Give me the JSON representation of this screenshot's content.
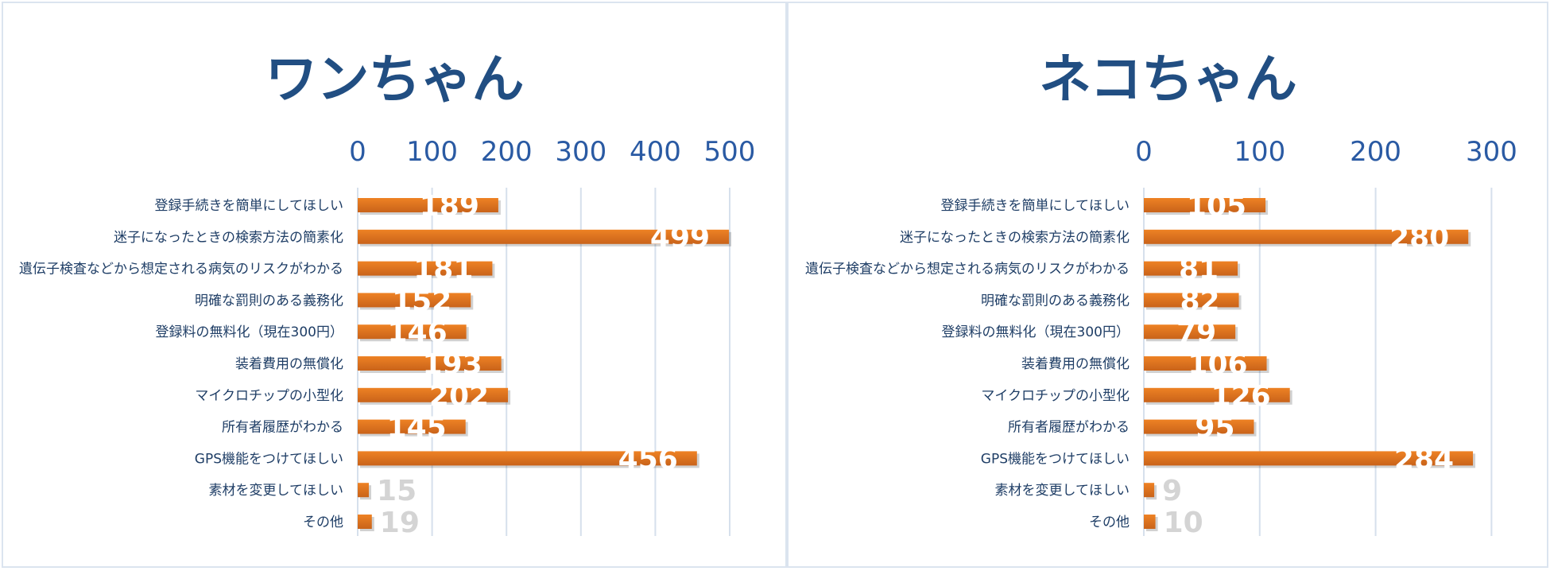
{
  "colors": {
    "bar": "#ee8224",
    "bar_dark": "#c9631a",
    "title": "#214e82",
    "tick": "#2a5aa3",
    "category_text": "#1f3e66",
    "grid": "#d6e0ec",
    "label_light": "#ffffff",
    "label_muted": "#d4d4d4"
  },
  "chart_data": [
    {
      "type": "bar",
      "orientation": "horizontal",
      "title": "ワンちゃん",
      "categories": [
        "登録手続きを簡単にしてほしい",
        "迷子になったときの検索方法の簡素化",
        "遺伝子検査などから想定される病気のリスクがわかる",
        "明確な罰則のある義務化",
        "登録料の無料化（現在300円）",
        "装着費用の無償化",
        "マイクロチップの小型化",
        "所有者履歴がわかる",
        "GPS機能をつけてほしい",
        "素材を変更してほしい",
        "その他"
      ],
      "values": [
        189,
        499,
        181,
        152,
        146,
        193,
        202,
        145,
        456,
        15,
        19
      ],
      "xlim": [
        0,
        500
      ],
      "ticks": [
        0,
        100,
        200,
        300,
        400,
        500
      ],
      "axis_position": "top",
      "grid": true
    },
    {
      "type": "bar",
      "orientation": "horizontal",
      "title": "ネコちゃん",
      "categories": [
        "登録手続きを簡単にしてほしい",
        "迷子になったときの検索方法の簡素化",
        "遺伝子検査などから想定される病気のリスクがわかる",
        "明確な罰則のある義務化",
        "登録料の無料化（現在300円）",
        "装着費用の無償化",
        "マイクロチップの小型化",
        "所有者履歴がわかる",
        "GPS機能をつけてほしい",
        "素材を変更してほしい",
        "その他"
      ],
      "values": [
        105,
        280,
        81,
        82,
        79,
        106,
        126,
        95,
        284,
        9,
        10
      ],
      "xlim": [
        0,
        300
      ],
      "ticks": [
        0,
        100,
        200,
        300
      ],
      "axis_position": "top",
      "grid": true
    }
  ]
}
